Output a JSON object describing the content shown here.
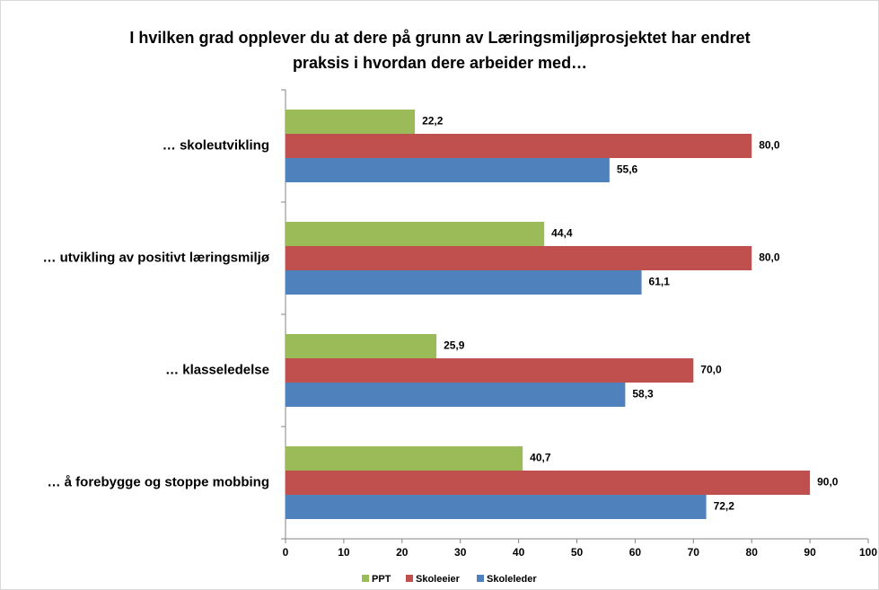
{
  "chart_data": {
    "type": "bar",
    "orientation": "horizontal",
    "title": "I hvilken grad opplever du at dere på grunn av Læringsmiljøprosjektet har endret praksis i hvordan dere arbeider med…",
    "categories": [
      "… skoleutvikling",
      "… utvikling av positivt læringsmiljø",
      "… klasseledelse",
      "… å forebygge og stoppe mobbing"
    ],
    "series": [
      {
        "name": "PPT",
        "color": "#9bbb59",
        "values": [
          22.2,
          44.4,
          25.9,
          40.7
        ],
        "value_labels": [
          "22,2",
          "44,4",
          "25,9",
          "40,7"
        ]
      },
      {
        "name": "Skoleeier",
        "color": "#c0504d",
        "values": [
          80,
          80,
          70,
          90
        ],
        "value_labels": [
          "80,0",
          "80,0",
          "70,0",
          "90,0"
        ]
      },
      {
        "name": "Skoleleder",
        "color": "#4f81bd",
        "values": [
          55.6,
          61.1,
          58.3,
          72.2
        ],
        "value_labels": [
          "55,6",
          "61,1",
          "58,3",
          "72,2"
        ]
      }
    ],
    "xlim": [
      0,
      100
    ],
    "xticks": [
      0,
      10,
      20,
      30,
      40,
      50,
      60,
      70,
      80,
      90,
      100
    ],
    "grid": false,
    "legend": "bottom"
  }
}
